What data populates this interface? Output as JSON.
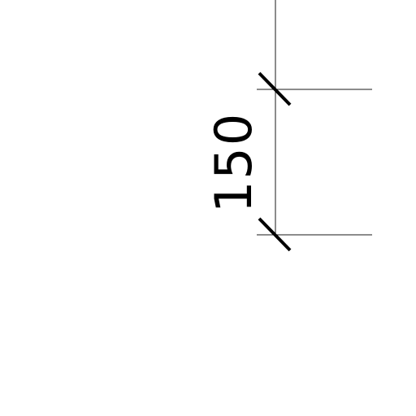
{
  "drawing": {
    "dimension": {
      "value_label": "150"
    }
  }
}
